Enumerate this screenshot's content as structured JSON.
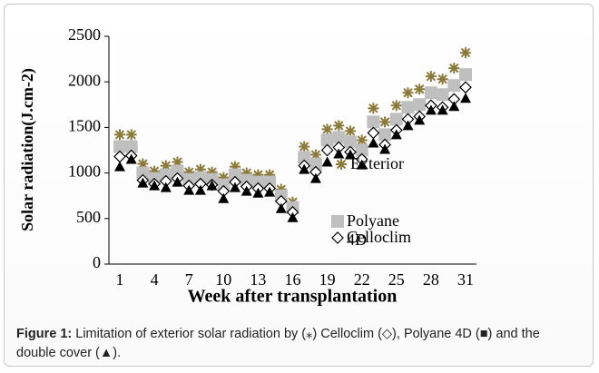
{
  "chart_data": {
    "type": "scatter",
    "y_label": "Solar radiation(J.cm-2)",
    "x_label": "Week after transplantation",
    "categories": [
      "1",
      null,
      null,
      "4",
      null,
      null,
      "7",
      null,
      null,
      "10",
      null,
      null,
      "13",
      null,
      null,
      "16",
      null,
      null,
      "19",
      null,
      null,
      "22",
      null,
      null,
      "25",
      null,
      null,
      "28",
      null,
      null,
      "31"
    ],
    "ylim": [
      0,
      2500
    ],
    "yticks": [
      0,
      500,
      1000,
      1500,
      2000,
      2500
    ],
    "series": [
      {
        "name": "Exterior",
        "marker": "asterisk",
        "color": "#8b7a3c",
        "values": [
          1420,
          1420,
          1100,
          1020,
          1080,
          1120,
          1010,
          1040,
          1010,
          950,
          1070,
          1000,
          980,
          980,
          820,
          680,
          1290,
          1200,
          1480,
          1520,
          1460,
          1360,
          1710,
          1560,
          1740,
          1880,
          1920,
          2060,
          2030,
          2150,
          2320
        ]
      },
      {
        "name": "Polyane 4D",
        "marker": "square",
        "color": "#bfbfbf",
        "values": [
          1290,
          1290,
          1000,
          940,
          980,
          1020,
          930,
          950,
          930,
          870,
          980,
          920,
          900,
          900,
          750,
          620,
          1170,
          1100,
          1360,
          1390,
          1340,
          1250,
          1560,
          1420,
          1590,
          1720,
          1750,
          1880,
          1860,
          1960,
          2080
        ]
      },
      {
        "name": "Celloclim",
        "marker": "diamond",
        "color": "#000000",
        "values": [
          1180,
          1190,
          920,
          880,
          910,
          940,
          860,
          880,
          870,
          800,
          900,
          850,
          830,
          830,
          690,
          570,
          1080,
          1010,
          1250,
          1280,
          1230,
          1150,
          1440,
          1310,
          1470,
          1590,
          1620,
          1740,
          1720,
          1810,
          1940
        ]
      },
      {
        "marker": "triangle",
        "color": "#000000",
        "values": [
          1070,
          1150,
          890,
          860,
          840,
          900,
          810,
          810,
          860,
          720,
          840,
          800,
          780,
          790,
          610,
          510,
          1040,
          940,
          1120,
          1210,
          1200,
          1090,
          1330,
          1260,
          1420,
          1520,
          1580,
          1690,
          1690,
          1730,
          1820
        ]
      }
    ]
  },
  "caption": {
    "label": "Figure 1:",
    "text": "Limitation of exterior solar radiation by (⁎) Celloclim (◇), Polyane 4D (■) and the double cover (▲)."
  }
}
